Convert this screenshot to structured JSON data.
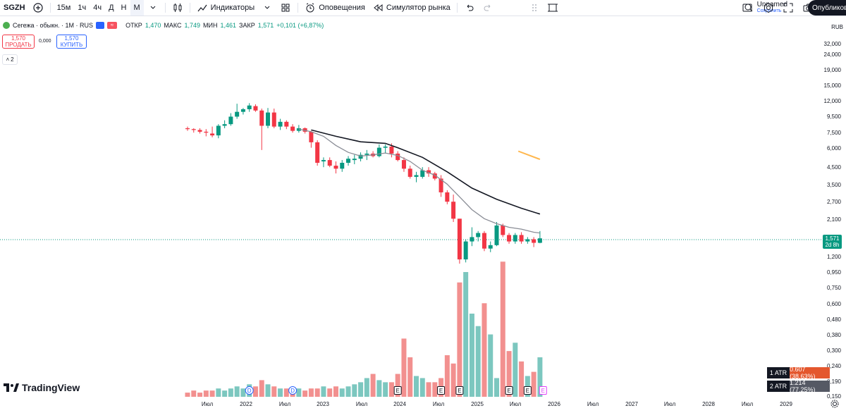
{
  "toolbar": {
    "symbol": "SGZH",
    "intervals": [
      "15м",
      "1ч",
      "4ч",
      "Д",
      "Н",
      "М"
    ],
    "indicators_label": "Индикаторы",
    "alerts_label": "Оповещения",
    "replay_label": "Симулятор рынка",
    "layout_name": "Unnamed",
    "layout_status": "Сохранить",
    "publish_label": "Опубликовать"
  },
  "legend": {
    "title": "Сегежа · обыкн. · 1М · RUS",
    "open_label": "ОТКР",
    "open": "1,470",
    "high_label": "МАКС",
    "high": "1,749",
    "low_label": "МИН",
    "low": "1,461",
    "close_label": "ЗАКР",
    "close": "1,571",
    "change": "+0,101 (+6,87%)"
  },
  "trade": {
    "sell_price": "1,570",
    "sell_label": "ПРОДАТЬ",
    "spread": "0,000",
    "buy_price": "1,570",
    "buy_label": "КУПИТЬ",
    "collapse_count": "2"
  },
  "price_scale": {
    "currency": "RUB",
    "current_price": "1,571",
    "countdown": "2d 8h"
  },
  "atr": [
    {
      "name": "1 ATR",
      "value": "0.607 (38.63%)",
      "color": "#e4572e"
    },
    {
      "name": "2 ATR",
      "value": "1.214 (77.25%)",
      "color": "#555964"
    }
  ],
  "brand": "TradingView",
  "colors": {
    "up": "#089981",
    "down": "#f23645",
    "vol_up": "#7cc7bf",
    "vol_down": "#f2908f"
  },
  "chart_data": {
    "type": "candlestick",
    "scale": "log",
    "y_ticks": [
      "32,000",
      "24,000",
      "19,000",
      "15,000",
      "12,000",
      "9,500",
      "7,500",
      "6,000",
      "4,500",
      "3,500",
      "2,700",
      "2,100",
      "1,600",
      "1,200",
      "0,950",
      "0,750",
      "0,600",
      "0,480",
      "0,380",
      "0,300",
      "0,240",
      "0,190",
      "0,150"
    ],
    "x_ticks": [
      "Июл",
      "2022",
      "Июл",
      "2023",
      "Июл",
      "2024",
      "Июл",
      "2025",
      "Июл",
      "2026",
      "Июл",
      "2027",
      "Июл",
      "2028",
      "Июл",
      "2029"
    ],
    "candles": [
      {
        "o": 8.0,
        "h": 8.2,
        "l": 7.7,
        "c": 7.9
      },
      {
        "o": 7.9,
        "h": 8.0,
        "l": 7.5,
        "c": 7.8
      },
      {
        "o": 7.8,
        "h": 8.0,
        "l": 7.4,
        "c": 7.6
      },
      {
        "o": 7.6,
        "h": 7.9,
        "l": 7.1,
        "c": 7.5
      },
      {
        "o": 7.4,
        "h": 8.2,
        "l": 7.0,
        "c": 7.2
      },
      {
        "o": 7.2,
        "h": 8.5,
        "l": 6.9,
        "c": 8.3
      },
      {
        "o": 8.3,
        "h": 9.0,
        "l": 8.0,
        "c": 8.5
      },
      {
        "o": 8.5,
        "h": 10.0,
        "l": 8.3,
        "c": 9.5
      },
      {
        "o": 9.5,
        "h": 11.5,
        "l": 9.2,
        "c": 10.2
      },
      {
        "o": 10.2,
        "h": 10.8,
        "l": 9.8,
        "c": 10.6
      },
      {
        "o": 10.6,
        "h": 11.6,
        "l": 10.2,
        "c": 11.2
      },
      {
        "o": 11.1,
        "h": 11.4,
        "l": 10.2,
        "c": 10.4
      },
      {
        "o": 10.4,
        "h": 10.7,
        "l": 5.8,
        "c": 8.3
      },
      {
        "o": 8.3,
        "h": 10.8,
        "l": 8.0,
        "c": 10.1
      },
      {
        "o": 10.1,
        "h": 10.7,
        "l": 8.0,
        "c": 8.2
      },
      {
        "o": 8.2,
        "h": 9.2,
        "l": 7.8,
        "c": 8.8
      },
      {
        "o": 8.8,
        "h": 9.0,
        "l": 7.9,
        "c": 8.2
      },
      {
        "o": 8.2,
        "h": 8.5,
        "l": 7.5,
        "c": 7.7
      },
      {
        "o": 7.7,
        "h": 8.4,
        "l": 7.5,
        "c": 8.0
      },
      {
        "o": 8.0,
        "h": 8.1,
        "l": 7.4,
        "c": 7.6
      },
      {
        "o": 7.6,
        "h": 7.7,
        "l": 6.0,
        "c": 6.5
      },
      {
        "o": 6.5,
        "h": 6.7,
        "l": 4.6,
        "c": 4.8
      },
      {
        "o": 4.9,
        "h": 5.2,
        "l": 4.5,
        "c": 5.0
      },
      {
        "o": 5.0,
        "h": 5.2,
        "l": 4.5,
        "c": 4.6
      },
      {
        "o": 4.6,
        "h": 4.9,
        "l": 4.1,
        "c": 4.4
      },
      {
        "o": 4.4,
        "h": 5.0,
        "l": 4.2,
        "c": 4.8
      },
      {
        "o": 4.8,
        "h": 5.3,
        "l": 4.6,
        "c": 5.1
      },
      {
        "o": 5.0,
        "h": 5.4,
        "l": 4.7,
        "c": 5.1
      },
      {
        "o": 5.1,
        "h": 5.6,
        "l": 4.9,
        "c": 5.4
      },
      {
        "o": 5.4,
        "h": 5.8,
        "l": 5.0,
        "c": 5.5
      },
      {
        "o": 5.5,
        "h": 5.7,
        "l": 5.2,
        "c": 5.3
      },
      {
        "o": 5.3,
        "h": 6.3,
        "l": 5.2,
        "c": 6.0
      },
      {
        "o": 6.0,
        "h": 6.3,
        "l": 5.5,
        "c": 6.1
      },
      {
        "o": 6.1,
        "h": 6.4,
        "l": 5.2,
        "c": 5.5
      },
      {
        "o": 5.5,
        "h": 5.7,
        "l": 4.9,
        "c": 5.0
      },
      {
        "o": 5.0,
        "h": 5.2,
        "l": 4.2,
        "c": 4.4
      },
      {
        "o": 4.4,
        "h": 4.6,
        "l": 3.8,
        "c": 3.9
      },
      {
        "o": 3.9,
        "h": 4.2,
        "l": 3.6,
        "c": 4.0
      },
      {
        "o": 3.9,
        "h": 4.5,
        "l": 3.8,
        "c": 4.3
      },
      {
        "o": 4.3,
        "h": 4.5,
        "l": 3.9,
        "c": 4.1
      },
      {
        "o": 4.1,
        "h": 4.2,
        "l": 3.7,
        "c": 3.8
      },
      {
        "o": 3.8,
        "h": 4.0,
        "l": 2.9,
        "c": 3.1
      },
      {
        "o": 3.1,
        "h": 3.2,
        "l": 2.6,
        "c": 2.7
      },
      {
        "o": 2.7,
        "h": 3.0,
        "l": 2.0,
        "c": 2.1
      },
      {
        "o": 2.1,
        "h": 2.1,
        "l": 1.08,
        "c": 1.15
      },
      {
        "o": 1.15,
        "h": 1.55,
        "l": 1.1,
        "c": 1.5
      },
      {
        "o": 1.5,
        "h": 1.85,
        "l": 1.4,
        "c": 1.6
      },
      {
        "o": 1.6,
        "h": 1.75,
        "l": 1.5,
        "c": 1.7
      },
      {
        "o": 1.7,
        "h": 1.75,
        "l": 1.3,
        "c": 1.35
      },
      {
        "o": 1.35,
        "h": 1.5,
        "l": 1.28,
        "c": 1.42
      },
      {
        "o": 1.42,
        "h": 2.0,
        "l": 1.4,
        "c": 1.9
      },
      {
        "o": 1.9,
        "h": 1.95,
        "l": 1.6,
        "c": 1.65
      },
      {
        "o": 1.65,
        "h": 1.7,
        "l": 1.45,
        "c": 1.5
      },
      {
        "o": 1.5,
        "h": 1.7,
        "l": 1.45,
        "c": 1.65
      },
      {
        "o": 1.65,
        "h": 1.72,
        "l": 1.45,
        "c": 1.5
      },
      {
        "o": 1.5,
        "h": 1.6,
        "l": 1.45,
        "c": 1.55
      },
      {
        "o": 1.55,
        "h": 1.6,
        "l": 1.38,
        "c": 1.47
      },
      {
        "o": 1.47,
        "h": 1.75,
        "l": 1.46,
        "c": 1.571
      }
    ],
    "volume": [
      0.02,
      0.03,
      0.02,
      0.03,
      0.03,
      0.04,
      0.03,
      0.04,
      0.05,
      0.04,
      0.06,
      0.05,
      0.08,
      0.06,
      0.05,
      0.04,
      0.04,
      0.03,
      0.04,
      0.03,
      0.04,
      0.04,
      0.05,
      0.04,
      0.05,
      0.04,
      0.05,
      0.06,
      0.07,
      0.09,
      0.11,
      0.08,
      0.07,
      0.07,
      0.11,
      0.28,
      0.19,
      0.1,
      0.09,
      0.07,
      0.07,
      0.09,
      0.2,
      0.16,
      0.55,
      0.6,
      0.4,
      0.34,
      0.45,
      0.3,
      0.09,
      0.65,
      0.22,
      0.26,
      0.17,
      0.1,
      0.12,
      0.19
    ],
    "ema_gray": [
      [
        18,
        7.9
      ],
      [
        20,
        7.6
      ],
      [
        22,
        7.1
      ],
      [
        24,
        6.2
      ],
      [
        26,
        5.6
      ],
      [
        28,
        5.3
      ],
      [
        30,
        5.4
      ],
      [
        32,
        5.55
      ],
      [
        34,
        5.35
      ],
      [
        36,
        4.9
      ],
      [
        38,
        4.3
      ],
      [
        40,
        4.0
      ],
      [
        42,
        3.5
      ],
      [
        44,
        2.9
      ],
      [
        46,
        2.4
      ],
      [
        48,
        2.1
      ],
      [
        50,
        1.95
      ],
      [
        52,
        1.85
      ],
      [
        54,
        1.8
      ],
      [
        56,
        1.72
      ],
      [
        57,
        1.7
      ]
    ],
    "ema_black": [
      [
        20,
        7.8
      ],
      [
        24,
        7.1
      ],
      [
        28,
        6.55
      ],
      [
        32,
        6.4
      ],
      [
        34,
        6.0
      ],
      [
        38,
        5.2
      ],
      [
        42,
        4.2
      ],
      [
        46,
        3.3
      ],
      [
        50,
        2.8
      ],
      [
        54,
        2.45
      ],
      [
        57,
        2.25
      ]
    ],
    "drawing_orange": [
      [
        53.5,
        5.7
      ],
      [
        57,
        5.05
      ]
    ],
    "event_markers": [
      {
        "i": 10,
        "label": "D"
      },
      {
        "i": 17,
        "label": "D"
      },
      {
        "i": 34,
        "label": "E"
      },
      {
        "i": 41,
        "label": "E"
      },
      {
        "i": 44,
        "label": "E"
      },
      {
        "i": 52,
        "label": "E"
      },
      {
        "i": 55,
        "label": "E"
      },
      {
        "i": 57.5,
        "label": "E"
      }
    ]
  }
}
